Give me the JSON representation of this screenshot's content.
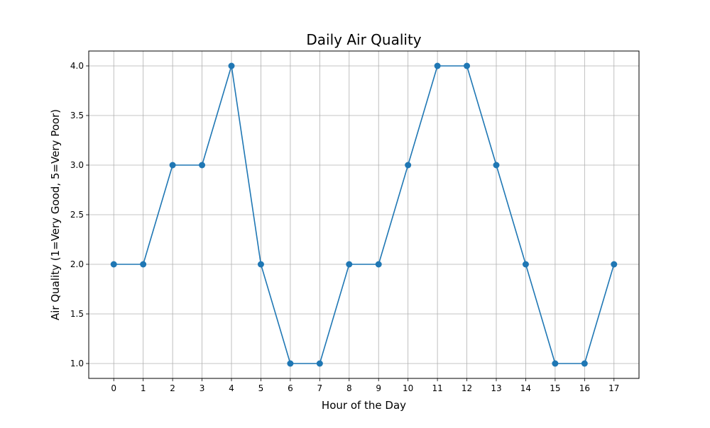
{
  "chart_data": {
    "type": "line",
    "title": "Daily Air Quality",
    "xlabel": "Hour of the Day",
    "ylabel": "Air Quality (1=Very Good, 5=Very Poor)",
    "x": [
      0,
      1,
      2,
      3,
      4,
      5,
      6,
      7,
      8,
      9,
      10,
      11,
      12,
      13,
      14,
      15,
      16,
      17
    ],
    "series": [
      {
        "values": [
          2,
          2,
          3,
          3,
          4,
          2,
          1,
          1,
          2,
          2,
          3,
          4,
          4,
          3,
          2,
          1,
          1,
          2
        ],
        "color": "#1f77b4",
        "marker": "circle"
      }
    ],
    "xticks": [
      "0",
      "1",
      "2",
      "3",
      "4",
      "5",
      "6",
      "7",
      "8",
      "9",
      "10",
      "11",
      "12",
      "13",
      "14",
      "15",
      "16",
      "17"
    ],
    "yticks": [
      "1.0",
      "1.5",
      "2.0",
      "2.5",
      "3.0",
      "3.5",
      "4.0"
    ],
    "xlim": [
      -0.85,
      17.85
    ],
    "ylim": [
      0.85,
      4.15
    ],
    "grid": true,
    "legend": "none"
  }
}
